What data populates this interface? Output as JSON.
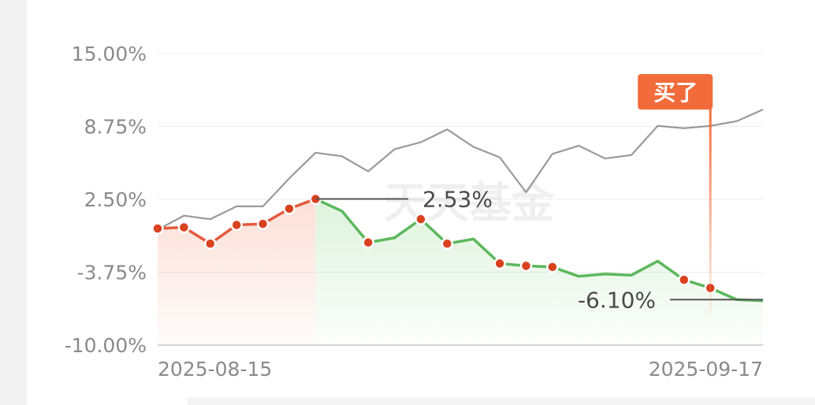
{
  "chart_data": {
    "type": "line",
    "ylim": [
      -10,
      15
    ],
    "y_ticks": [
      "15.00%",
      "8.75%",
      "2.50%",
      "-3.75%",
      "-10.00%"
    ],
    "x_labels": [
      "2025-08-15",
      "2025-09-17"
    ],
    "grid": true,
    "series": [
      {
        "values": [
          -0.1,
          1.1,
          0.8,
          1.9,
          1.9,
          4.3,
          6.5,
          6.2,
          4.9,
          6.8,
          7.4,
          8.5,
          7.0,
          6.1,
          3.1,
          6.4,
          7.1,
          6.0,
          6.3,
          8.8,
          8.6,
          8.8,
          9.2,
          10.2
        ]
      },
      {
        "values": [
          0,
          0.1,
          -1.3,
          0.3,
          0.4,
          1.7,
          2.53,
          1.5,
          -1.2,
          -0.8,
          0.8,
          -1.3,
          -0.9,
          -3.0,
          -3.2,
          -3.3,
          -4.1,
          -3.9,
          -4.0,
          -2.8,
          -4.4,
          -5.1,
          -6.1,
          -6.2
        ],
        "color_up": "#e55a3c",
        "color_down": "#5cb85c"
      }
    ],
    "marked_points": [
      0,
      1,
      2,
      3,
      4,
      5,
      6,
      8,
      10,
      11,
      13,
      14,
      15,
      20,
      21
    ],
    "annotations": [
      {
        "text": "2.53%",
        "point_index": 6
      },
      {
        "text": "-6.10%",
        "point_index": 22
      }
    ],
    "buy_marker": {
      "label": "买了",
      "point_index": 21
    },
    "watermark": "天天基金"
  }
}
